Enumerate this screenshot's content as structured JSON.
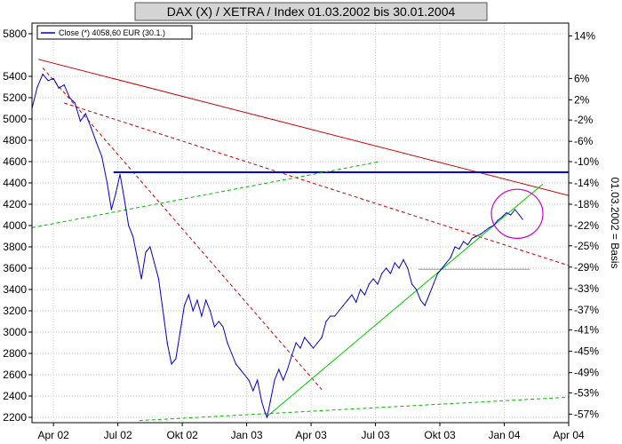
{
  "chart_data": {
    "type": "line",
    "title": "DAX (X) / XETRA / Index 01.03.2002 bis 30.01.2004",
    "legend": "Close (*) 4058,60 EUR (30.1.)",
    "right_axis_label": "01.03.2002 = Basis",
    "ylim": [
      2150,
      5900
    ],
    "xlim": [
      0,
      25
    ],
    "y_ticks": [
      2200,
      2400,
      2600,
      2800,
      3000,
      3200,
      3400,
      3600,
      3800,
      4000,
      4200,
      4400,
      4600,
      4800,
      5000,
      5200,
      5400,
      5800
    ],
    "x_ticks": [
      {
        "label": "Apr 02",
        "x": 1
      },
      {
        "label": "Jul 02",
        "x": 4
      },
      {
        "label": "Okt 02",
        "x": 7
      },
      {
        "label": "Jan 03",
        "x": 10
      },
      {
        "label": "Apr 03",
        "x": 13
      },
      {
        "label": "Jul 03",
        "x": 16
      },
      {
        "label": "Okt 03",
        "x": 19
      },
      {
        "label": "Jan 04",
        "x": 22
      },
      {
        "label": "Apr 04",
        "x": 25
      }
    ],
    "pct_ticks": [
      {
        "label": "14%",
        "y": 5780
      },
      {
        "label": "6%",
        "y": 5380
      },
      {
        "label": "2%",
        "y": 5180
      },
      {
        "label": "-2%",
        "y": 4990
      },
      {
        "label": "-6%",
        "y": 4790
      },
      {
        "label": "-10%",
        "y": 4600
      },
      {
        "label": "-14%",
        "y": 4400
      },
      {
        "label": "-18%",
        "y": 4200
      },
      {
        "label": "-22%",
        "y": 4000
      },
      {
        "label": "-25%",
        "y": 3810
      },
      {
        "label": "-29%",
        "y": 3610
      },
      {
        "label": "-33%",
        "y": 3410
      },
      {
        "label": "-37%",
        "y": 3210
      },
      {
        "label": "-41%",
        "y": 3020
      },
      {
        "label": "-45%",
        "y": 2820
      },
      {
        "label": "-49%",
        "y": 2620
      },
      {
        "label": "-53%",
        "y": 2430
      },
      {
        "label": "-57%",
        "y": 2230
      }
    ],
    "series": [
      {
        "color": "#0000cc",
        "points": [
          [
            0,
            5100
          ],
          [
            0.25,
            5300
          ],
          [
            0.5,
            5420
          ],
          [
            0.75,
            5360
          ],
          [
            1,
            5380
          ],
          [
            1.25,
            5290
          ],
          [
            1.5,
            5320
          ],
          [
            1.75,
            5200
          ],
          [
            2,
            5150
          ],
          [
            2.25,
            4980
          ],
          [
            2.5,
            5050
          ],
          [
            2.75,
            4920
          ],
          [
            3,
            4780
          ],
          [
            3.25,
            4650
          ],
          [
            3.5,
            4400
          ],
          [
            3.7,
            4150
          ],
          [
            3.9,
            4300
          ],
          [
            4.1,
            4480
          ],
          [
            4.3,
            4250
          ],
          [
            4.5,
            4000
          ],
          [
            4.7,
            3900
          ],
          [
            4.9,
            3700
          ],
          [
            5.1,
            3500
          ],
          [
            5.3,
            3750
          ],
          [
            5.5,
            3800
          ],
          [
            5.7,
            3650
          ],
          [
            5.9,
            3500
          ],
          [
            6.1,
            3200
          ],
          [
            6.3,
            2900
          ],
          [
            6.5,
            2700
          ],
          [
            6.7,
            2750
          ],
          [
            6.9,
            3000
          ],
          [
            7.1,
            3250
          ],
          [
            7.3,
            3350
          ],
          [
            7.5,
            3200
          ],
          [
            7.7,
            3300
          ],
          [
            7.9,
            3150
          ],
          [
            8.1,
            3300
          ],
          [
            8.3,
            3200
          ],
          [
            8.5,
            3050
          ],
          [
            8.7,
            3100
          ],
          [
            8.9,
            3050
          ],
          [
            9.1,
            2900
          ],
          [
            9.3,
            2800
          ],
          [
            9.5,
            2700
          ],
          [
            9.7,
            2650
          ],
          [
            9.9,
            2600
          ],
          [
            10.1,
            2550
          ],
          [
            10.3,
            2450
          ],
          [
            10.5,
            2550
          ],
          [
            10.7,
            2350
          ],
          [
            10.85,
            2250
          ],
          [
            10.95,
            2202
          ],
          [
            11.1,
            2350
          ],
          [
            11.3,
            2550
          ],
          [
            11.5,
            2650
          ],
          [
            11.7,
            2550
          ],
          [
            11.9,
            2650
          ],
          [
            12.1,
            2780
          ],
          [
            12.3,
            2900
          ],
          [
            12.5,
            2850
          ],
          [
            12.7,
            2950
          ],
          [
            12.9,
            2900
          ],
          [
            13.1,
            2850
          ],
          [
            13.3,
            2900
          ],
          [
            13.5,
            2950
          ],
          [
            13.7,
            3100
          ],
          [
            13.9,
            3150
          ],
          [
            14.1,
            3150
          ],
          [
            14.3,
            3200
          ],
          [
            14.5,
            3250
          ],
          [
            14.7,
            3300
          ],
          [
            14.9,
            3350
          ],
          [
            15.1,
            3280
          ],
          [
            15.3,
            3400
          ],
          [
            15.5,
            3350
          ],
          [
            15.7,
            3450
          ],
          [
            15.9,
            3500
          ],
          [
            16.1,
            3450
          ],
          [
            16.3,
            3550
          ],
          [
            16.5,
            3600
          ],
          [
            16.7,
            3550
          ],
          [
            16.9,
            3650
          ],
          [
            17.1,
            3600
          ],
          [
            17.3,
            3680
          ],
          [
            17.5,
            3600
          ],
          [
            17.7,
            3450
          ],
          [
            17.9,
            3400
          ],
          [
            18.1,
            3300
          ],
          [
            18.3,
            3250
          ],
          [
            18.5,
            3350
          ],
          [
            18.7,
            3450
          ],
          [
            18.9,
            3550
          ],
          [
            19.1,
            3600
          ],
          [
            19.3,
            3650
          ],
          [
            19.5,
            3700
          ],
          [
            19.7,
            3800
          ],
          [
            19.9,
            3780
          ],
          [
            20.1,
            3850
          ],
          [
            20.3,
            3820
          ],
          [
            20.5,
            3880
          ],
          [
            20.7,
            3900
          ],
          [
            20.9,
            3920
          ],
          [
            21.1,
            3950
          ],
          [
            21.3,
            3980
          ],
          [
            21.5,
            4000
          ],
          [
            21.7,
            4050
          ],
          [
            21.9,
            4080
          ],
          [
            22.1,
            4120
          ],
          [
            22.3,
            4100
          ],
          [
            22.5,
            4150
          ],
          [
            22.7,
            4100
          ],
          [
            22.85,
            4058.6
          ]
        ]
      }
    ],
    "trend_lines": [
      {
        "color": "#cc0000",
        "dash": false,
        "from": [
          0.3,
          5560
        ],
        "to": [
          26,
          4230
        ]
      },
      {
        "color": "#cc0000",
        "dash": true,
        "from": [
          0.5,
          5480
        ],
        "to": [
          13.5,
          2460
        ]
      },
      {
        "color": "#cc0000",
        "dash": true,
        "from": [
          1.5,
          5150
        ],
        "to": [
          26,
          3560
        ]
      },
      {
        "color": "#0000cc",
        "dash": false,
        "from": [
          3.8,
          4500
        ],
        "to": [
          26,
          4500
        ]
      },
      {
        "color": "#00bb00",
        "dash": true,
        "from": [
          0,
          3980
        ],
        "to": [
          16.2,
          4600
        ]
      },
      {
        "color": "#00cc00",
        "dash": false,
        "from": [
          10.9,
          2200
        ],
        "to": [
          23.8,
          4390
        ]
      },
      {
        "color": "#00bb00",
        "dash": true,
        "from": [
          5,
          2170
        ],
        "to": [
          26,
          2400
        ]
      },
      {
        "color": "#999999",
        "dash": false,
        "from": [
          18,
          3590
        ],
        "to": [
          23.2,
          3590
        ]
      }
    ],
    "highlight_circle": {
      "color": "#cc00cc",
      "center": [
        22.6,
        4110
      ],
      "rx": 1.2,
      "ry": 230
    }
  }
}
